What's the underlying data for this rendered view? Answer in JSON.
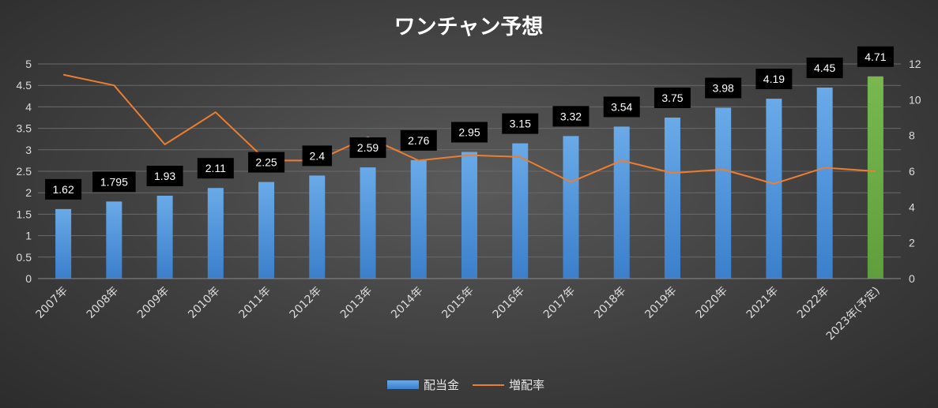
{
  "chart_data": {
    "type": "bar",
    "title": "ワンチャン予想",
    "categories": [
      "2007年",
      "2008年",
      "2009年",
      "2010年",
      "2011年",
      "2012年",
      "2013年",
      "2014年",
      "2015年",
      "2016年",
      "2017年",
      "2018年",
      "2019年",
      "2020年",
      "2021年",
      "2022年",
      "2023年(予定)"
    ],
    "series": [
      {
        "name": "配当金",
        "type": "bar",
        "axis": "left",
        "values": [
          1.62,
          1.795,
          1.93,
          2.11,
          2.25,
          2.4,
          2.59,
          2.76,
          2.95,
          3.15,
          3.32,
          3.54,
          3.75,
          3.98,
          4.19,
          4.45,
          4.71
        ],
        "data_labels": [
          "1.62",
          "1.795",
          "1.93",
          "2.11",
          "2.25",
          "2.4",
          "2.59",
          "2.76",
          "2.95",
          "3.15",
          "3.32",
          "3.54",
          "3.75",
          "3.98",
          "4.19",
          "4.45",
          "4.71"
        ],
        "color": "#4a8fd8",
        "highlight_color": "#6fad47",
        "highlight_index": 16
      },
      {
        "name": "増配率",
        "type": "line",
        "axis": "right",
        "values": [
          11.4,
          10.8,
          7.5,
          9.3,
          6.6,
          6.6,
          7.9,
          6.6,
          6.9,
          6.8,
          5.4,
          6.6,
          5.9,
          6.1,
          5.3,
          6.2,
          6.0
        ],
        "color": "#ed7d31"
      }
    ],
    "y_left": {
      "ylim": [
        0,
        5
      ],
      "ticks": [
        "0",
        "0.5",
        "1",
        "1.5",
        "2",
        "2.5",
        "3",
        "3.5",
        "4",
        "4.5",
        "5"
      ]
    },
    "y_right": {
      "ylim": [
        0,
        12
      ],
      "ticks": [
        "0",
        "2",
        "4",
        "6",
        "8",
        "10",
        "12"
      ]
    },
    "grid": true,
    "legend": {
      "position": "bottom",
      "items": [
        "配当金",
        "増配率"
      ]
    }
  }
}
